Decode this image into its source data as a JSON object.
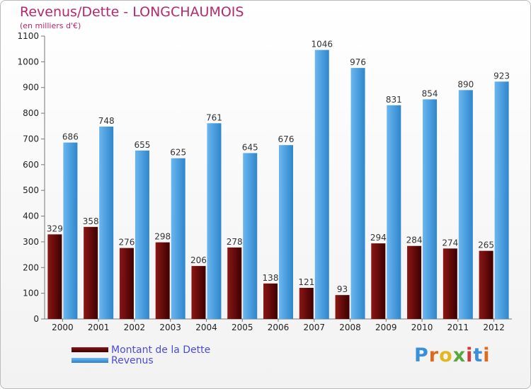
{
  "chart_data": {
    "type": "bar",
    "title": "Revenus/Dette - LONGCHAUMOIS",
    "subtitle": "(en milliers d'€)",
    "categories": [
      "2000",
      "2001",
      "2002",
      "2003",
      "2004",
      "2005",
      "2006",
      "2007",
      "2008",
      "2009",
      "2010",
      "2011",
      "2012"
    ],
    "series": [
      {
        "name": "Montant de la Dette",
        "color": "#6e0a0a",
        "values": [
          329,
          358,
          276,
          298,
          206,
          278,
          138,
          121,
          93,
          294,
          284,
          274,
          265
        ]
      },
      {
        "name": "Revenus",
        "color": "#4aa3e8",
        "values": [
          686,
          748,
          655,
          625,
          761,
          645,
          676,
          1046,
          976,
          831,
          854,
          890,
          923
        ]
      }
    ],
    "ylim": [
      0,
      1100
    ],
    "yticks": [
      0,
      100,
      200,
      300,
      400,
      500,
      600,
      700,
      800,
      900,
      1000,
      1100
    ],
    "grid": false,
    "legend": "bottom-left"
  },
  "logo": {
    "letters": [
      "P",
      "r",
      "o",
      "x",
      "i",
      "t",
      "i"
    ],
    "colors": [
      "#3a8fd8",
      "#e06a1c",
      "#e2b81f",
      "#58a83a",
      "#d23a3a",
      "#3a8fd8",
      "#e06a1c"
    ]
  }
}
